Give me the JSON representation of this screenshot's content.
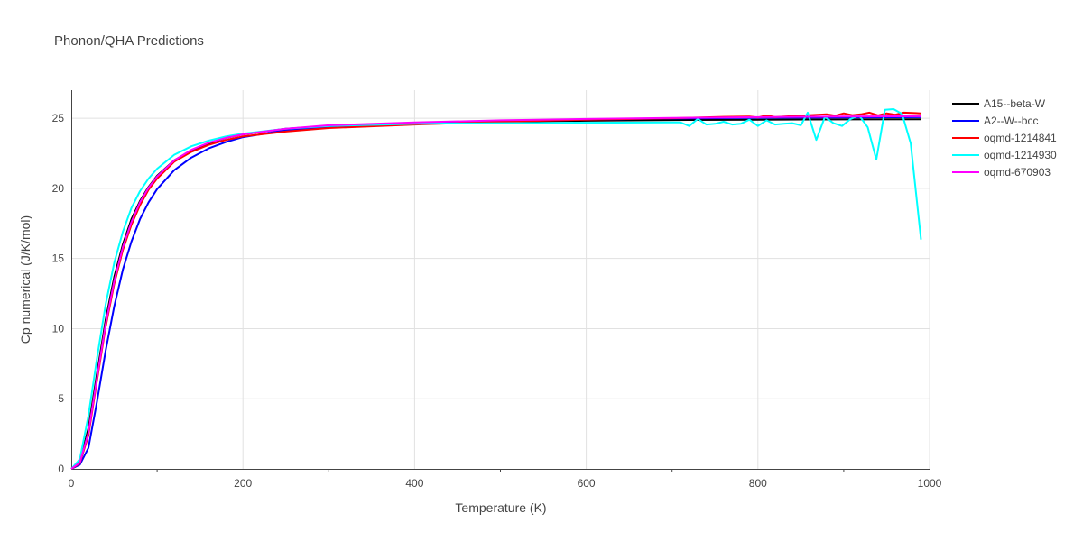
{
  "chart_data": {
    "type": "line",
    "title": "Phonon/QHA Predictions",
    "xlabel": "Temperature (K)",
    "ylabel": "Cp numerical (J/K/mol)",
    "xlim": [
      0,
      1000
    ],
    "ylim": [
      0,
      27
    ],
    "x_ticks": [
      0,
      200,
      400,
      600,
      800,
      1000
    ],
    "y_ticks": [
      0,
      5,
      10,
      15,
      20,
      25
    ],
    "grid": true,
    "legend_position": "top-right",
    "series": [
      {
        "name": "A15--beta-W",
        "color": "#000000",
        "points": [
          [
            0,
            0
          ],
          [
            10,
            0.5
          ],
          [
            20,
            2.9
          ],
          [
            30,
            6.8
          ],
          [
            40,
            10.6
          ],
          [
            50,
            13.7
          ],
          [
            60,
            16.0
          ],
          [
            70,
            17.8
          ],
          [
            80,
            19.1
          ],
          [
            90,
            20.1
          ],
          [
            100,
            20.9
          ],
          [
            120,
            22.0
          ],
          [
            140,
            22.7
          ],
          [
            160,
            23.2
          ],
          [
            180,
            23.6
          ],
          [
            200,
            23.85
          ],
          [
            250,
            24.25
          ],
          [
            300,
            24.45
          ],
          [
            400,
            24.65
          ],
          [
            500,
            24.75
          ],
          [
            600,
            24.82
          ],
          [
            700,
            24.87
          ],
          [
            800,
            24.9
          ],
          [
            900,
            24.92
          ],
          [
            990,
            24.93
          ]
        ]
      },
      {
        "name": "A2--W--bcc",
        "color": "#0000ff",
        "points": [
          [
            0,
            0
          ],
          [
            10,
            0.3
          ],
          [
            20,
            1.5
          ],
          [
            30,
            4.8
          ],
          [
            40,
            8.4
          ],
          [
            50,
            11.6
          ],
          [
            60,
            14.2
          ],
          [
            70,
            16.2
          ],
          [
            80,
            17.8
          ],
          [
            90,
            19.0
          ],
          [
            100,
            19.95
          ],
          [
            120,
            21.3
          ],
          [
            140,
            22.2
          ],
          [
            160,
            22.85
          ],
          [
            180,
            23.3
          ],
          [
            200,
            23.65
          ],
          [
            250,
            24.15
          ],
          [
            300,
            24.4
          ],
          [
            400,
            24.65
          ],
          [
            500,
            24.8
          ],
          [
            600,
            24.9
          ],
          [
            700,
            24.98
          ],
          [
            800,
            25.03
          ],
          [
            900,
            25.06
          ],
          [
            990,
            25.08
          ]
        ]
      },
      {
        "name": "oqmd-1214841",
        "color": "#ff0000",
        "points": [
          [
            0,
            0
          ],
          [
            10,
            0.4
          ],
          [
            20,
            2.4
          ],
          [
            30,
            6.3
          ],
          [
            40,
            10.1
          ],
          [
            50,
            13.2
          ],
          [
            60,
            15.6
          ],
          [
            70,
            17.4
          ],
          [
            80,
            18.8
          ],
          [
            90,
            19.9
          ],
          [
            100,
            20.7
          ],
          [
            120,
            21.9
          ],
          [
            140,
            22.6
          ],
          [
            160,
            23.1
          ],
          [
            180,
            23.45
          ],
          [
            200,
            23.7
          ],
          [
            250,
            24.05
          ],
          [
            300,
            24.3
          ],
          [
            400,
            24.55
          ],
          [
            500,
            24.75
          ],
          [
            600,
            24.9
          ],
          [
            700,
            25.0
          ],
          [
            760,
            25.1
          ],
          [
            790,
            25.12
          ],
          [
            800,
            25.05
          ],
          [
            810,
            25.2
          ],
          [
            820,
            25.08
          ],
          [
            840,
            25.15
          ],
          [
            860,
            25.22
          ],
          [
            880,
            25.28
          ],
          [
            890,
            25.18
          ],
          [
            900,
            25.35
          ],
          [
            910,
            25.22
          ],
          [
            920,
            25.28
          ],
          [
            930,
            25.4
          ],
          [
            940,
            25.2
          ],
          [
            950,
            25.35
          ],
          [
            960,
            25.25
          ],
          [
            970,
            25.4
          ],
          [
            990,
            25.35
          ]
        ]
      },
      {
        "name": "oqmd-1214930",
        "color": "#00ffff",
        "points": [
          [
            0,
            0
          ],
          [
            10,
            0.7
          ],
          [
            20,
            3.8
          ],
          [
            30,
            7.9
          ],
          [
            40,
            11.7
          ],
          [
            50,
            14.7
          ],
          [
            60,
            16.9
          ],
          [
            70,
            18.6
          ],
          [
            80,
            19.8
          ],
          [
            90,
            20.7
          ],
          [
            100,
            21.4
          ],
          [
            120,
            22.4
          ],
          [
            140,
            23.0
          ],
          [
            160,
            23.4
          ],
          [
            180,
            23.7
          ],
          [
            200,
            23.9
          ],
          [
            250,
            24.25
          ],
          [
            300,
            24.45
          ],
          [
            400,
            24.6
          ],
          [
            500,
            24.65
          ],
          [
            600,
            24.68
          ],
          [
            700,
            24.7
          ],
          [
            710,
            24.7
          ],
          [
            720,
            24.45
          ],
          [
            730,
            24.95
          ],
          [
            740,
            24.55
          ],
          [
            750,
            24.6
          ],
          [
            760,
            24.75
          ],
          [
            770,
            24.55
          ],
          [
            780,
            24.6
          ],
          [
            790,
            24.9
          ],
          [
            800,
            24.45
          ],
          [
            810,
            24.85
          ],
          [
            820,
            24.55
          ],
          [
            830,
            24.6
          ],
          [
            840,
            24.65
          ],
          [
            850,
            24.5
          ],
          [
            858,
            25.4
          ],
          [
            868,
            23.45
          ],
          [
            878,
            25.1
          ],
          [
            888,
            24.65
          ],
          [
            898,
            24.45
          ],
          [
            908,
            24.95
          ],
          [
            918,
            25.2
          ],
          [
            928,
            24.35
          ],
          [
            938,
            22.05
          ],
          [
            948,
            25.6
          ],
          [
            958,
            25.65
          ],
          [
            968,
            25.3
          ],
          [
            978,
            23.2
          ],
          [
            990,
            16.35
          ]
        ]
      },
      {
        "name": "oqmd-670903",
        "color": "#ff00ff",
        "points": [
          [
            0,
            0
          ],
          [
            10,
            0.45
          ],
          [
            20,
            2.6
          ],
          [
            30,
            6.5
          ],
          [
            40,
            10.3
          ],
          [
            50,
            13.4
          ],
          [
            60,
            15.8
          ],
          [
            70,
            17.6
          ],
          [
            80,
            19.0
          ],
          [
            90,
            20.05
          ],
          [
            100,
            20.85
          ],
          [
            120,
            22.0
          ],
          [
            140,
            22.75
          ],
          [
            160,
            23.25
          ],
          [
            180,
            23.6
          ],
          [
            200,
            23.85
          ],
          [
            250,
            24.25
          ],
          [
            300,
            24.5
          ],
          [
            400,
            24.7
          ],
          [
            500,
            24.85
          ],
          [
            600,
            24.95
          ],
          [
            700,
            25.02
          ],
          [
            800,
            25.08
          ],
          [
            900,
            25.12
          ],
          [
            990,
            25.14
          ]
        ]
      }
    ]
  }
}
